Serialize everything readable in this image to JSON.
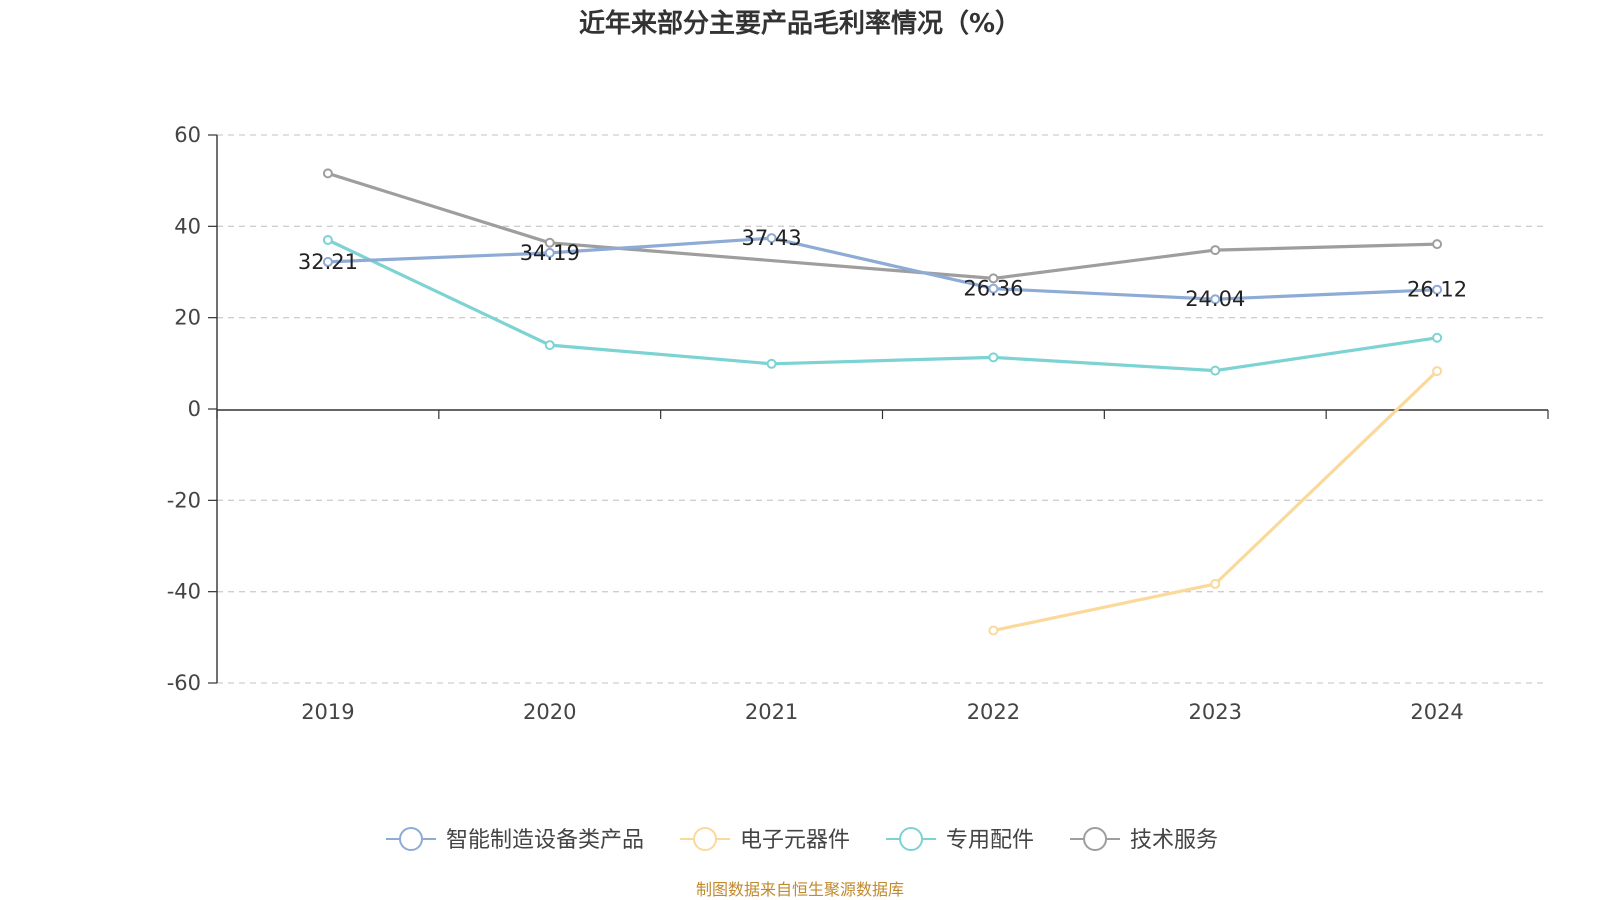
{
  "chart_data": {
    "type": "line",
    "title": "近年来部分主要产品毛利率情况（%）",
    "categories": [
      "2019",
      "2020",
      "2021",
      "2022",
      "2023",
      "2024"
    ],
    "ylim": [
      -60,
      60
    ],
    "yticks": [
      "60",
      "40",
      "20",
      "0",
      "-20",
      "-40",
      "-60"
    ],
    "grid": true,
    "legend_position": "bottom",
    "series": [
      {
        "name": "智能制造设备类产品",
        "color": "#8eabd6",
        "values": [
          32.21,
          34.19,
          37.43,
          26.36,
          24.04,
          26.12
        ],
        "labels": [
          "32.21",
          "34.19",
          "37.43",
          "26.36",
          "24.04",
          "26.12"
        ]
      },
      {
        "name": "电子元器件",
        "color": "#fad99a",
        "values": [
          null,
          null,
          null,
          -48.5,
          -38.3,
          8.3
        ]
      },
      {
        "name": "专用配件",
        "color": "#7dd3d3",
        "values": [
          37.0,
          14.0,
          9.9,
          11.3,
          8.4,
          15.6
        ]
      },
      {
        "name": "技术服务",
        "color": "#9e9e9e",
        "values": [
          51.6,
          36.4,
          null,
          28.6,
          34.8,
          36.1
        ]
      }
    ]
  },
  "source": "制图数据来自恒生聚源数据库"
}
